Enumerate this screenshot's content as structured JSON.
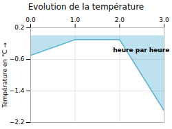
{
  "chart_data": {
    "type": "area",
    "title": "Evolution de la température",
    "ylabel": "Température en °C",
    "x": [
      0,
      1,
      2,
      3
    ],
    "values": [
      -0.5,
      -0.1,
      -0.1,
      -1.9
    ],
    "color": "#5ab4d6",
    "xlim": [
      0,
      3
    ],
    "xticks": [
      0,
      1,
      2,
      3
    ],
    "ylim": [
      -2.2,
      0.2
    ],
    "yticks": [
      0.2,
      -0.6,
      -1.4,
      -2.2
    ],
    "grid": true,
    "annotations": [
      {
        "text": "heure par heure",
        "x": 1.85,
        "y": -0.42
      }
    ]
  }
}
